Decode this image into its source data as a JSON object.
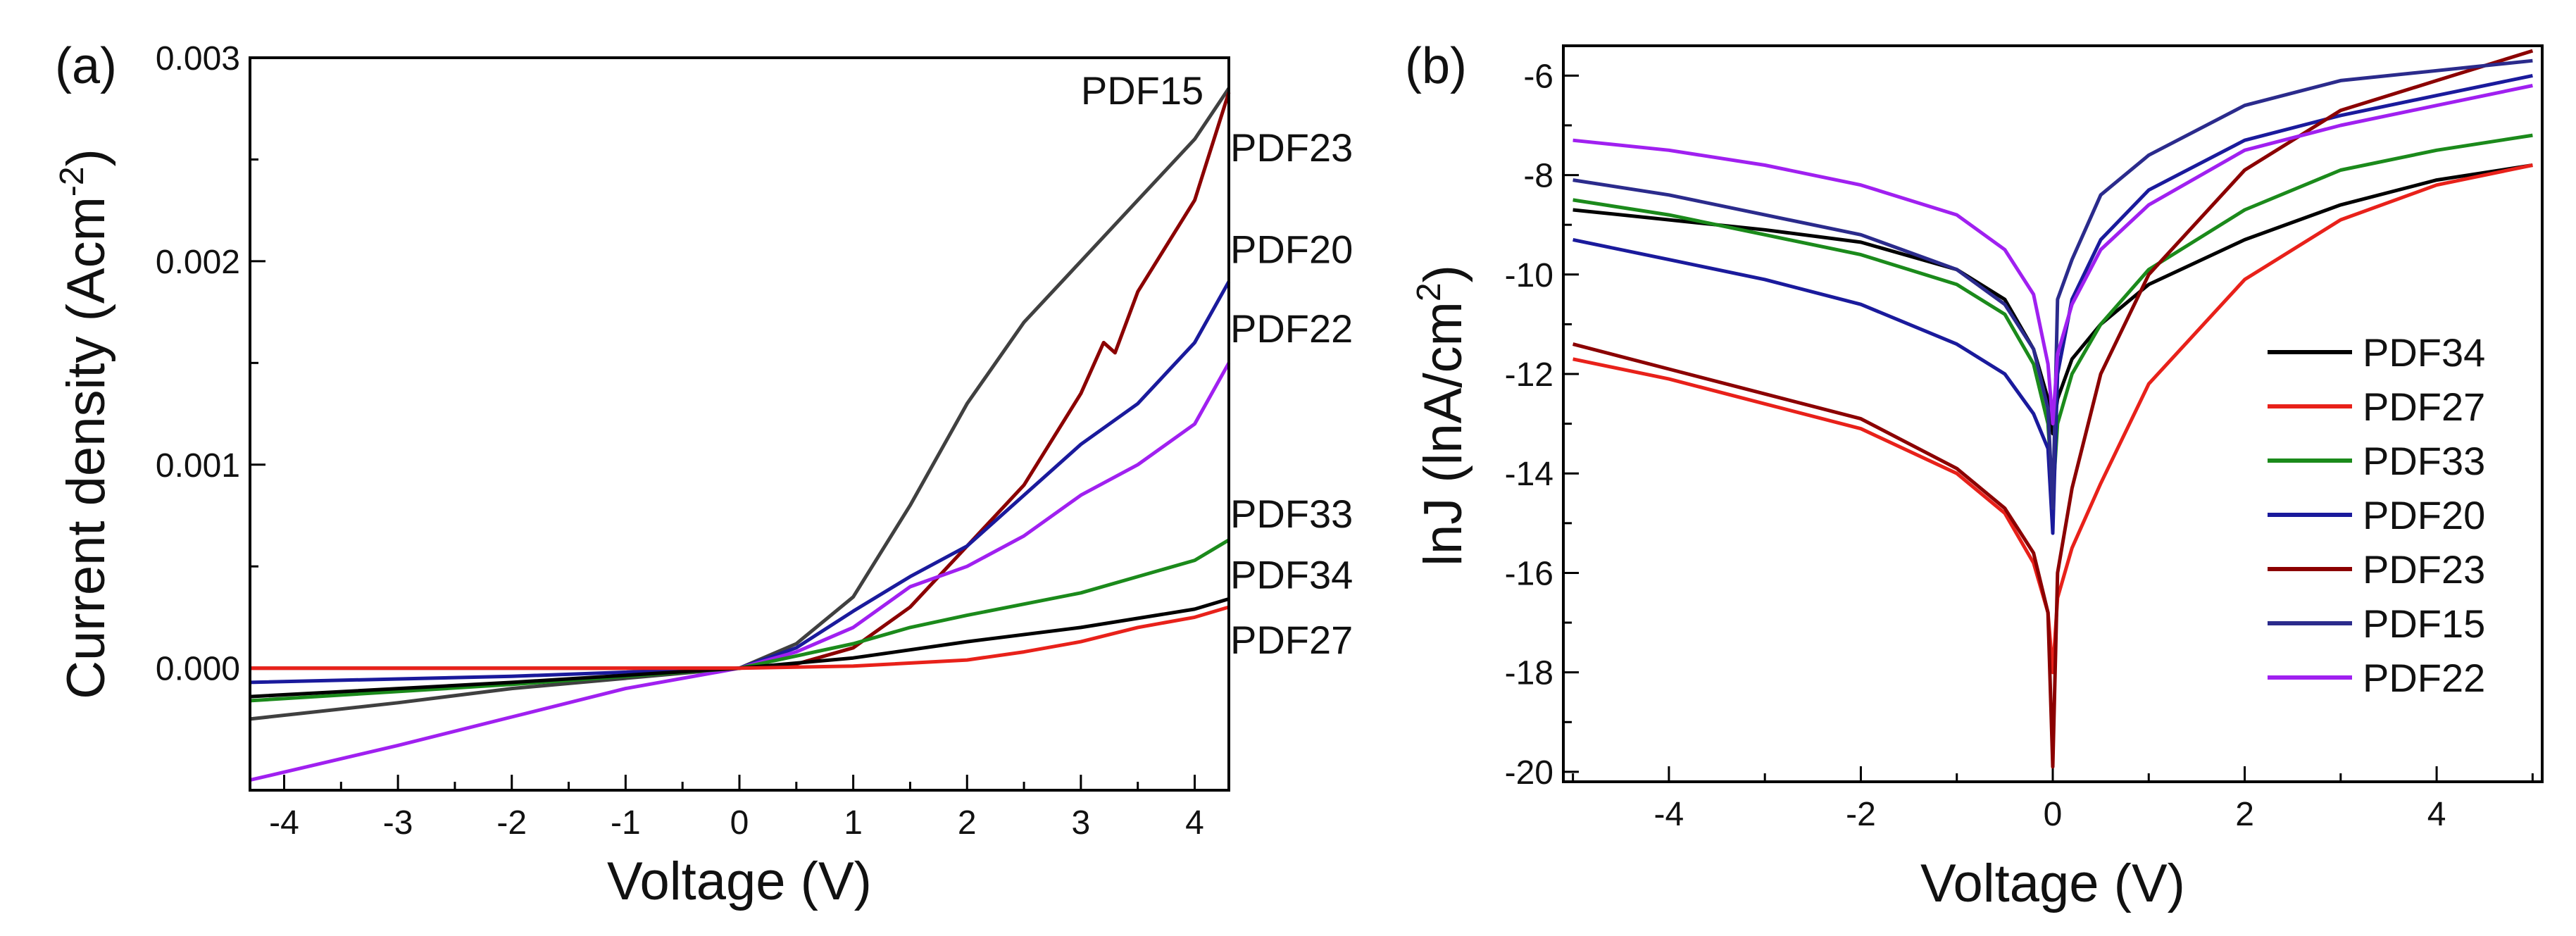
{
  "figure": {
    "panel_a": {
      "label": "(a)",
      "xlabel": "Voltage (V)",
      "ylabel_main": "Current density (Acm",
      "ylabel_sup": "-2",
      "ylabel_close": ")"
    },
    "panel_b": {
      "label": "(b)",
      "xlabel": "Voltage (V)",
      "ylabel_main": "lnJ (lnA/cm",
      "ylabel_sup": "2",
      "ylabel_close": ")"
    }
  },
  "chart_data": [
    {
      "type": "line",
      "panel": "(a)",
      "title": "",
      "xlabel": "Voltage (V)",
      "ylabel": "Current density (Acm-2)",
      "xlim": [
        -4.3,
        4.3
      ],
      "ylim": [
        -0.0006,
        0.003
      ],
      "xticks": [
        -4,
        -3,
        -2,
        -1,
        0,
        1,
        2,
        3,
        4
      ],
      "yticks": [
        0.0,
        0.001,
        0.002,
        0.003
      ],
      "ytick_labels": [
        "0.000",
        "0.001",
        "0.002",
        "0.003"
      ],
      "legend": "inline labels at right end of curves",
      "series": [
        {
          "name": "PDF15",
          "color": "#404040",
          "x": [
            -4.3,
            -3,
            -2,
            -1,
            0,
            0.5,
            1,
            1.5,
            2,
            2.5,
            3,
            3.5,
            4,
            4.3
          ],
          "y": [
            -0.00025,
            -0.00017,
            -0.0001,
            -5e-05,
            0,
            0.00012,
            0.00035,
            0.0008,
            0.0013,
            0.0017,
            0.002,
            0.0023,
            0.0026,
            0.00285
          ]
        },
        {
          "name": "PDF23",
          "color": "#8B0000",
          "x": [
            -4.3,
            -2,
            0,
            0.5,
            1,
            1.5,
            2,
            2.5,
            3,
            3.2,
            3.3,
            3.5,
            4,
            4.3
          ],
          "y": [
            0,
            0,
            0,
            2e-05,
            0.0001,
            0.0003,
            0.0006,
            0.0009,
            0.00135,
            0.0016,
            0.00155,
            0.00185,
            0.0023,
            0.00283
          ]
        },
        {
          "name": "PDF20",
          "color": "#1A1A9C",
          "x": [
            -4.3,
            -2,
            0,
            0.5,
            1,
            1.5,
            2,
            2.5,
            3,
            3.5,
            4,
            4.3
          ],
          "y": [
            -7e-05,
            -4e-05,
            0,
            0.0001,
            0.00028,
            0.00045,
            0.0006,
            0.00085,
            0.0011,
            0.0013,
            0.0016,
            0.0019
          ]
        },
        {
          "name": "PDF22",
          "color": "#A020F0",
          "x": [
            -4.3,
            -3,
            -2,
            -1,
            0,
            0.5,
            1,
            1.5,
            2,
            2.5,
            3,
            3.5,
            4,
            4.3
          ],
          "y": [
            -0.00055,
            -0.00038,
            -0.00024,
            -0.0001,
            0,
            8e-05,
            0.0002,
            0.0004,
            0.0005,
            0.00065,
            0.00085,
            0.001,
            0.0012,
            0.0015
          ]
        },
        {
          "name": "PDF33",
          "color": "#1B8A1B",
          "x": [
            -4.3,
            -2,
            0,
            1,
            1.5,
            2,
            3,
            4,
            4.3
          ],
          "y": [
            -0.00016,
            -8e-05,
            0,
            0.00012,
            0.0002,
            0.00026,
            0.00037,
            0.00053,
            0.00063
          ]
        },
        {
          "name": "PDF34",
          "color": "#000000",
          "x": [
            -4.3,
            -2,
            0,
            1,
            2,
            3,
            4,
            4.3
          ],
          "y": [
            -0.00014,
            -7e-05,
            0,
            5e-05,
            0.00013,
            0.0002,
            0.00029,
            0.00034
          ]
        },
        {
          "name": "PDF27",
          "color": "#E8211A",
          "x": [
            -4.3,
            -2,
            0,
            1,
            2,
            2.5,
            3,
            3.5,
            4,
            4.3
          ],
          "y": [
            0,
            0,
            0,
            1e-05,
            4e-05,
            8e-05,
            0.00013,
            0.0002,
            0.00025,
            0.0003
          ]
        }
      ],
      "annotations": [
        {
          "text": "PDF15",
          "x": 3.0,
          "y": 0.00283
        },
        {
          "text": "PDF23",
          "x": 4.3,
          "y": 0.00255
        },
        {
          "text": "PDF20",
          "x": 4.3,
          "y": 0.00205
        },
        {
          "text": "PDF22",
          "x": 4.3,
          "y": 0.00166
        },
        {
          "text": "PDF33",
          "x": 4.3,
          "y": 0.00075
        },
        {
          "text": "PDF34",
          "x": 4.3,
          "y": 0.00045
        },
        {
          "text": "PDF27",
          "x": 4.3,
          "y": 0.00013
        }
      ]
    },
    {
      "type": "line",
      "panel": "(b)",
      "title": "",
      "xlabel": "Voltage (V)",
      "ylabel": "lnJ (lnA/cm2)",
      "xlim": [
        -5.1,
        5.1
      ],
      "ylim": [
        -20.2,
        -5.4
      ],
      "xticks": [
        -4,
        -2,
        0,
        2,
        4
      ],
      "yticks": [
        -20,
        -18,
        -16,
        -14,
        -12,
        -10,
        -8,
        -6
      ],
      "legend": "lower right",
      "series": [
        {
          "name": "PDF34",
          "color": "#000000",
          "x": [
            -5,
            -4,
            -3,
            -2,
            -1,
            -0.5,
            -0.2,
            -0.05,
            0,
            0.05,
            0.2,
            0.5,
            1,
            2,
            3,
            4,
            5
          ],
          "y": [
            -8.7,
            -8.9,
            -9.1,
            -9.35,
            -9.9,
            -10.5,
            -11.5,
            -12.5,
            -13.2,
            -12.5,
            -11.7,
            -11.0,
            -10.2,
            -9.3,
            -8.6,
            -8.1,
            -7.8
          ]
        },
        {
          "name": "PDF27",
          "color": "#E8211A",
          "x": [
            -5,
            -4,
            -3,
            -2,
            -1,
            -0.5,
            -0.2,
            -0.05,
            0,
            0.05,
            0.2,
            0.5,
            1,
            2,
            3,
            4,
            5
          ],
          "y": [
            -11.7,
            -12.1,
            -12.6,
            -13.1,
            -14.0,
            -14.8,
            -15.8,
            -16.8,
            -18.0,
            -16.5,
            -15.5,
            -14.2,
            -12.2,
            -10.1,
            -8.9,
            -8.2,
            -7.8
          ]
        },
        {
          "name": "PDF33",
          "color": "#1B8A1B",
          "x": [
            -5,
            -4,
            -3,
            -2,
            -1,
            -0.5,
            -0.2,
            -0.05,
            0,
            0.05,
            0.2,
            0.5,
            1,
            2,
            3,
            4,
            5
          ],
          "y": [
            -8.5,
            -8.8,
            -9.2,
            -9.6,
            -10.2,
            -10.8,
            -11.8,
            -13.0,
            -14.5,
            -13.0,
            -12.0,
            -11.0,
            -9.9,
            -8.7,
            -7.9,
            -7.5,
            -7.2
          ]
        },
        {
          "name": "PDF20",
          "color": "#1A1A9C",
          "x": [
            -5,
            -4,
            -3,
            -2,
            -1,
            -0.5,
            -0.2,
            -0.05,
            0,
            0.05,
            0.2,
            0.5,
            1,
            2,
            3,
            4,
            5
          ],
          "y": [
            -9.3,
            -9.7,
            -10.1,
            -10.6,
            -11.4,
            -12.0,
            -12.8,
            -13.5,
            -15.2,
            -12.0,
            -10.5,
            -9.3,
            -8.3,
            -7.3,
            -6.8,
            -6.4,
            -6.0
          ]
        },
        {
          "name": "PDF23",
          "color": "#8B0000",
          "x": [
            -5,
            -4,
            -3,
            -2,
            -1,
            -0.5,
            -0.2,
            -0.05,
            0,
            0.05,
            0.2,
            0.5,
            1,
            2,
            3,
            4,
            5
          ],
          "y": [
            -11.4,
            -11.9,
            -12.4,
            -12.9,
            -13.9,
            -14.7,
            -15.6,
            -16.8,
            -19.9,
            -16.0,
            -14.3,
            -12.0,
            -10.0,
            -7.9,
            -6.7,
            -6.1,
            -5.5
          ]
        },
        {
          "name": "PDF15",
          "color": "#2B2B8C",
          "x": [
            -5,
            -4,
            -3,
            -2,
            -1,
            -0.5,
            -0.2,
            -0.05,
            0,
            0.05,
            0.2,
            0.5,
            1,
            2,
            3,
            4,
            5
          ],
          "y": [
            -8.1,
            -8.4,
            -8.8,
            -9.2,
            -9.9,
            -10.6,
            -11.5,
            -12.7,
            -14.7,
            -10.5,
            -9.7,
            -8.4,
            -7.6,
            -6.6,
            -6.1,
            -5.9,
            -5.7
          ]
        },
        {
          "name": "PDF22",
          "color": "#A020F0",
          "x": [
            -5,
            -4,
            -3,
            -2,
            -1,
            -0.5,
            -0.2,
            -0.05,
            0,
            0.05,
            0.2,
            0.5,
            1,
            2,
            3,
            4,
            5
          ],
          "y": [
            -7.3,
            -7.5,
            -7.8,
            -8.2,
            -8.8,
            -9.5,
            -10.4,
            -11.8,
            -13.0,
            -11.6,
            -10.6,
            -9.5,
            -8.6,
            -7.5,
            -7.0,
            -6.6,
            -6.2
          ]
        }
      ]
    }
  ]
}
